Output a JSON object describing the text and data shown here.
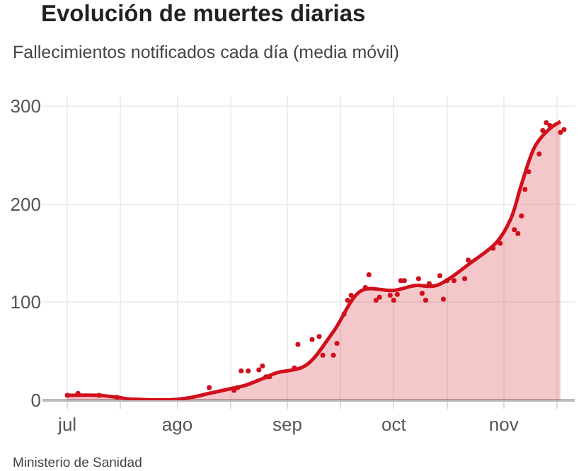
{
  "chart_data": {
    "type": "area",
    "title": "Evolución de muertes diarias",
    "subtitle": "Fallecimientos notificados cada día (media móvil)",
    "annotations": [
      "Ministerio de Sanidad"
    ],
    "xlim": [
      "--06-24",
      "--11-21"
    ],
    "ylim": [
      0,
      310
    ],
    "yticks": [
      0,
      100,
      200,
      300
    ],
    "xticks": [
      {
        "value": "--07-01",
        "label": "jul"
      },
      {
        "value": "--07-16",
        "label": null
      },
      {
        "value": "--08-01",
        "label": "ago"
      },
      {
        "value": "--08-16",
        "label": null
      },
      {
        "value": "--09-01",
        "label": "sep"
      },
      {
        "value": "--09-16",
        "label": null
      },
      {
        "value": "--10-01",
        "label": "oct"
      },
      {
        "value": "--10-16",
        "label": null
      },
      {
        "value": "--11-01",
        "label": "nov"
      },
      {
        "value": "--11-16",
        "label": null
      }
    ],
    "grid": true,
    "series": [
      {
        "color": "#d0101c",
        "marker": "none",
        "x": [
          "--07-01",
          "--07-10",
          "--07-15",
          "--07-20",
          "--08-01",
          "--08-05",
          "--08-10",
          "--08-15",
          "--08-20",
          "--08-25",
          "--08-29",
          "--09-06",
          "--09-14",
          "--09-22",
          "--10-01",
          "--10-07",
          "--10-13",
          "--10-23",
          "--10-30",
          "--11-03",
          "--11-06",
          "--11-10",
          "--11-14",
          "--11-17"
        ],
        "values": [
          5,
          5,
          3,
          1,
          1,
          3,
          7,
          11,
          15,
          22,
          28,
          35,
          70,
          112,
          112,
          117,
          117,
          141,
          161,
          185,
          220,
          260,
          277,
          284
        ]
      },
      {
        "type": "scatter",
        "color": "#d0101c",
        "marker": "circle",
        "x": [
          "--07-01",
          "--07-04",
          "--07-10",
          "--07-15",
          "--08-10",
          "--08-17",
          "--08-18",
          "--08-19",
          "--08-21",
          "--08-24",
          "--08-25",
          "--08-26",
          "--08-27",
          "--09-03",
          "--09-04",
          "--09-08",
          "--09-10",
          "--09-11",
          "--09-14",
          "--09-15",
          "--09-17",
          "--09-18",
          "--09-19",
          "--09-23",
          "--09-24",
          "--09-26",
          "--09-27",
          "--09-30",
          "--10-01",
          "--10-02",
          "--10-03",
          "--10-04",
          "--10-08",
          "--10-09",
          "--10-10",
          "--10-11",
          "--10-14",
          "--10-15",
          "--10-16",
          "--10-18",
          "--10-21",
          "--10-22",
          "--10-29",
          "--10-31",
          "--11-04",
          "--11-05",
          "--11-06",
          "--11-07",
          "--11-08",
          "--11-11",
          "--11-12",
          "--11-13",
          "--11-14",
          "--11-17",
          "--11-18"
        ],
        "values": [
          5,
          7,
          5,
          3,
          13,
          10,
          13,
          30,
          30,
          31,
          35,
          24,
          24,
          33,
          57,
          62,
          65,
          46,
          46,
          58,
          88,
          102,
          107,
          115,
          128,
          102,
          105,
          107,
          102,
          108,
          122,
          122,
          124,
          109,
          102,
          119,
          127,
          103,
          122,
          122,
          124,
          143,
          155,
          160,
          174,
          170,
          188,
          215,
          233,
          251,
          275,
          283,
          280,
          273,
          276
        ]
      }
    ]
  }
}
